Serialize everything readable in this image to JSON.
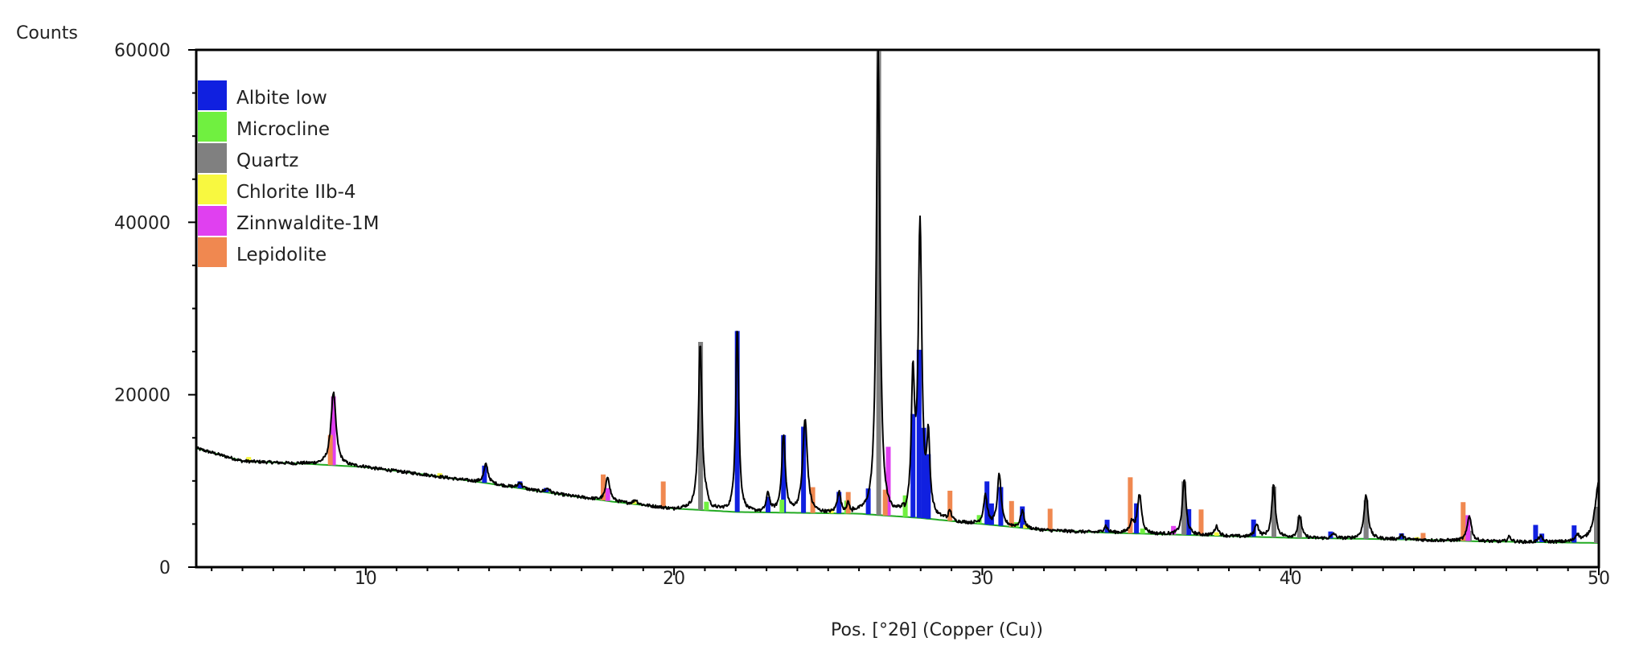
{
  "chart_data": {
    "type": "line",
    "title": "",
    "xlabel": "Pos. [°2θ] (Copper (Cu))",
    "ylabel": "Counts",
    "xlim": [
      4.5,
      50
    ],
    "ylim": [
      0,
      60000
    ],
    "x_ticks": [
      10,
      20,
      30,
      40,
      50
    ],
    "y_ticks": [
      0,
      20000,
      40000,
      60000
    ],
    "x_tick_labels": [
      "10",
      "20",
      "30",
      "40",
      "50"
    ],
    "y_tick_labels": [
      "0",
      "20000",
      "40000",
      "60000"
    ],
    "grid": false,
    "legend_position": "top-left",
    "baseline": {
      "color": "#22aa22",
      "x": [
        4.5,
        6,
        8,
        10,
        12,
        14,
        16,
        18,
        20,
        22,
        24,
        26,
        28,
        30,
        32,
        34,
        36,
        38,
        40,
        42,
        44,
        46,
        48,
        50
      ],
      "y": [
        13800,
        12300,
        12000,
        11600,
        10700,
        9700,
        8600,
        7600,
        6800,
        6400,
        6300,
        6200,
        5700,
        5000,
        4300,
        4000,
        3800,
        3600,
        3400,
        3300,
        3200,
        3000,
        2900,
        2800
      ]
    },
    "pattern": {
      "color": "#000000",
      "noise": 180,
      "peaks": [
        {
          "x": 8.95,
          "h": 8400,
          "w": 0.1
        },
        {
          "x": 13.9,
          "h": 2200,
          "w": 0.08
        },
        {
          "x": 15.0,
          "h": 700,
          "w": 0.08
        },
        {
          "x": 15.9,
          "h": 500,
          "w": 0.08
        },
        {
          "x": 17.85,
          "h": 2800,
          "w": 0.08
        },
        {
          "x": 18.75,
          "h": 500,
          "w": 0.08
        },
        {
          "x": 20.85,
          "h": 19300,
          "w": 0.07
        },
        {
          "x": 21.05,
          "h": 800,
          "w": 0.06
        },
        {
          "x": 22.05,
          "h": 21500,
          "w": 0.06
        },
        {
          "x": 23.05,
          "h": 2200,
          "w": 0.07
        },
        {
          "x": 23.55,
          "h": 8900,
          "w": 0.07
        },
        {
          "x": 24.25,
          "h": 10800,
          "w": 0.09
        },
        {
          "x": 25.35,
          "h": 2500,
          "w": 0.07
        },
        {
          "x": 25.65,
          "h": 1200,
          "w": 0.07
        },
        {
          "x": 26.62,
          "h": 53800,
          "w": 0.07
        },
        {
          "x": 27.75,
          "h": 15500,
          "w": 0.06
        },
        {
          "x": 27.98,
          "h": 33700,
          "w": 0.07
        },
        {
          "x": 28.25,
          "h": 8500,
          "w": 0.06
        },
        {
          "x": 28.95,
          "h": 1200,
          "w": 0.07
        },
        {
          "x": 30.1,
          "h": 3400,
          "w": 0.07
        },
        {
          "x": 30.55,
          "h": 6000,
          "w": 0.07
        },
        {
          "x": 31.3,
          "h": 2000,
          "w": 0.07
        },
        {
          "x": 34.0,
          "h": 800,
          "w": 0.07
        },
        {
          "x": 34.85,
          "h": 1200,
          "w": 0.08
        },
        {
          "x": 35.1,
          "h": 4500,
          "w": 0.08
        },
        {
          "x": 36.55,
          "h": 6500,
          "w": 0.07
        },
        {
          "x": 37.6,
          "h": 1100,
          "w": 0.08
        },
        {
          "x": 38.9,
          "h": 1500,
          "w": 0.07
        },
        {
          "x": 39.45,
          "h": 6000,
          "w": 0.07
        },
        {
          "x": 40.3,
          "h": 2600,
          "w": 0.07
        },
        {
          "x": 41.4,
          "h": 600,
          "w": 0.07
        },
        {
          "x": 42.45,
          "h": 5100,
          "w": 0.08
        },
        {
          "x": 43.6,
          "h": 500,
          "w": 0.07
        },
        {
          "x": 45.8,
          "h": 3000,
          "w": 0.08
        },
        {
          "x": 47.1,
          "h": 600,
          "w": 0.07
        },
        {
          "x": 48.1,
          "h": 700,
          "w": 0.07
        },
        {
          "x": 49.3,
          "h": 800,
          "w": 0.07
        },
        {
          "x": 50.0,
          "h": 7000,
          "w": 0.15
        }
      ]
    },
    "series": [
      {
        "name": "Albite low",
        "color": "#1020e0",
        "sticks": [
          [
            13.85,
            2000
          ],
          [
            15.0,
            800
          ],
          [
            15.85,
            500
          ],
          [
            22.05,
            21000
          ],
          [
            23.05,
            1800
          ],
          [
            23.55,
            9000
          ],
          [
            24.2,
            10000
          ],
          [
            25.35,
            2500
          ],
          [
            26.3,
            3000
          ],
          [
            27.75,
            12000
          ],
          [
            27.95,
            19500
          ],
          [
            28.1,
            10500
          ],
          [
            28.25,
            7500
          ],
          [
            30.15,
            5000
          ],
          [
            30.3,
            2500
          ],
          [
            30.6,
            4500
          ],
          [
            31.3,
            2500
          ],
          [
            34.05,
            1500
          ],
          [
            35.0,
            3500
          ],
          [
            36.7,
            3000
          ],
          [
            38.8,
            2000
          ],
          [
            41.3,
            800
          ],
          [
            42.45,
            1500
          ],
          [
            43.6,
            700
          ],
          [
            47.95,
            2000
          ],
          [
            48.15,
            1000
          ],
          [
            49.2,
            2000
          ],
          [
            49.95,
            2000
          ]
        ]
      },
      {
        "name": "Microcline",
        "color": "#70f040",
        "sticks": [
          [
            21.05,
            1000
          ],
          [
            23.5,
            1500
          ],
          [
            25.6,
            1500
          ],
          [
            27.5,
            2500
          ],
          [
            29.9,
            1000
          ],
          [
            31.1,
            600
          ],
          [
            35.2,
            600
          ]
        ]
      },
      {
        "name": "Quartz",
        "color": "#808080",
        "sticks": [
          [
            20.86,
            19500
          ],
          [
            26.64,
            53800
          ],
          [
            36.54,
            6200
          ],
          [
            39.46,
            5900
          ],
          [
            40.29,
            2500
          ],
          [
            42.45,
            4500
          ],
          [
            45.8,
            1200
          ],
          [
            50.14,
            4200
          ]
        ]
      },
      {
        "name": "Chlorite IIb-4",
        "color": "#f8f840",
        "sticks": [
          [
            6.2,
            500
          ],
          [
            12.4,
            400
          ],
          [
            18.7,
            400
          ],
          [
            25.1,
            500
          ],
          [
            31.4,
            400
          ],
          [
            37.6,
            400
          ],
          [
            44.1,
            300
          ]
        ]
      },
      {
        "name": "Zinnwaldite-1M",
        "color": "#e040f0",
        "sticks": [
          [
            8.95,
            8000
          ],
          [
            17.85,
            1500
          ],
          [
            26.95,
            8000
          ],
          [
            36.2,
            1000
          ],
          [
            45.75,
            3000
          ]
        ]
      },
      {
        "name": "Lepidolite",
        "color": "#f08850",
        "sticks": [
          [
            8.85,
            3500
          ],
          [
            17.7,
            3000
          ],
          [
            19.65,
            3000
          ],
          [
            24.5,
            3000
          ],
          [
            25.65,
            2500
          ],
          [
            26.85,
            3000
          ],
          [
            28.95,
            3500
          ],
          [
            30.95,
            3000
          ],
          [
            32.2,
            2500
          ],
          [
            34.8,
            6500
          ],
          [
            37.1,
            3000
          ],
          [
            44.3,
            800
          ],
          [
            45.6,
            4500
          ]
        ]
      }
    ]
  }
}
